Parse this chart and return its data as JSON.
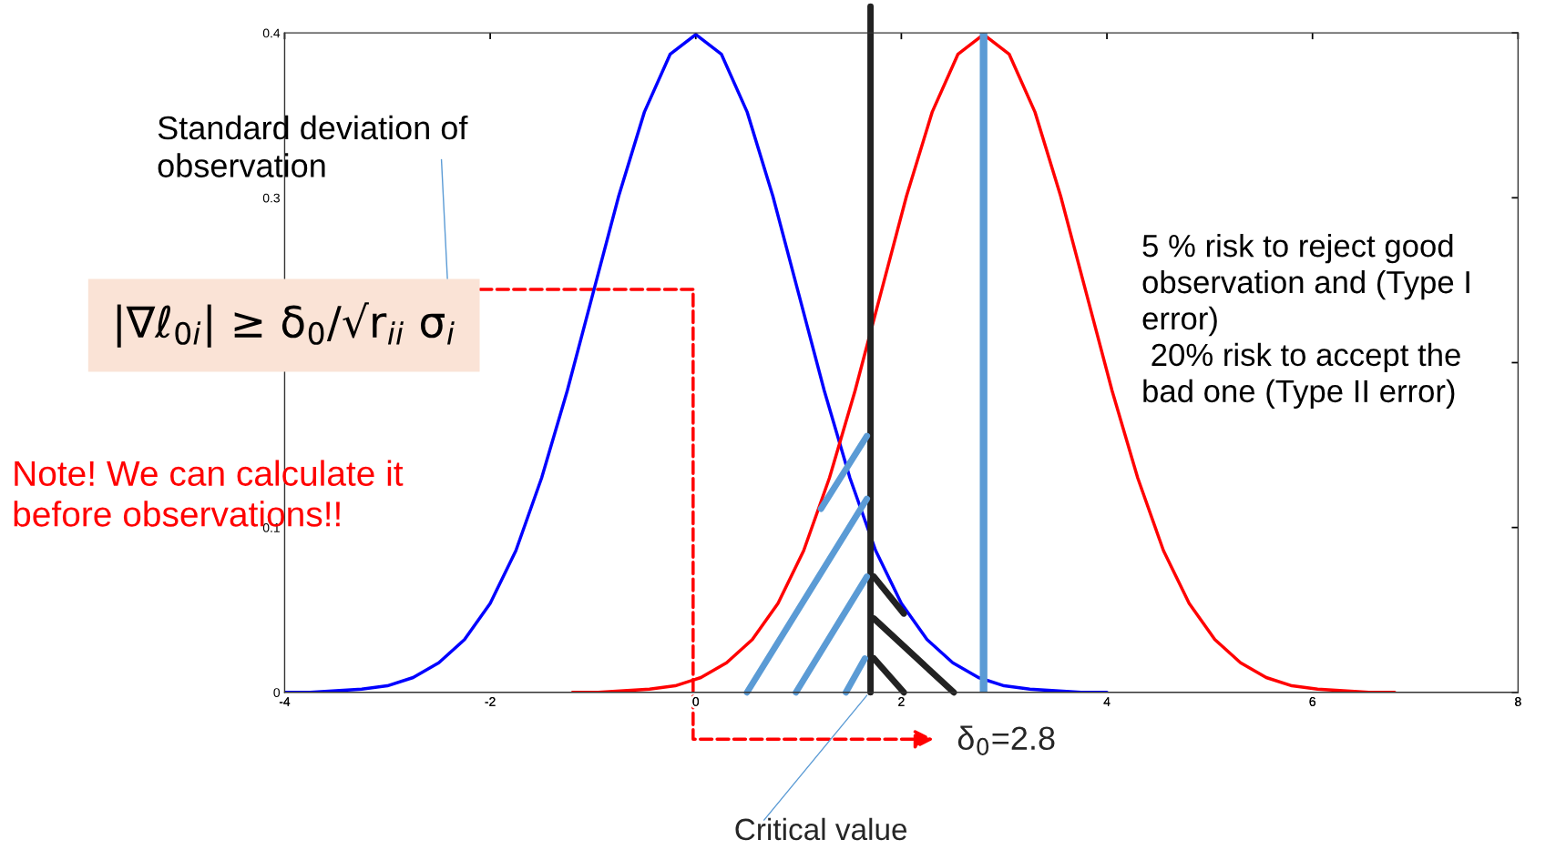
{
  "chart_data": {
    "type": "line",
    "series": [
      {
        "color": "#0000ff",
        "x": [
          -4,
          -3.75,
          -3.5,
          -3.25,
          -3,
          -2.75,
          -2.5,
          -2.25,
          -2,
          -1.75,
          -1.5,
          -1.25,
          -1,
          -0.75,
          -0.5,
          -0.25,
          0,
          0.25,
          0.5,
          0.75,
          1,
          1.25,
          1.5,
          1.75,
          2,
          2.25,
          2.5,
          2.75,
          3,
          3.25,
          3.5,
          3.75,
          4
        ],
        "values": [
          0.0,
          0.0,
          0.001,
          0.002,
          0.004,
          0.009,
          0.018,
          0.032,
          0.054,
          0.086,
          0.13,
          0.183,
          0.242,
          0.301,
          0.352,
          0.387,
          0.399,
          0.387,
          0.352,
          0.301,
          0.242,
          0.183,
          0.13,
          0.086,
          0.054,
          0.032,
          0.018,
          0.009,
          0.004,
          0.002,
          0.001,
          0.0,
          0.0
        ]
      },
      {
        "color": "#ff0000",
        "x": [
          -1.2,
          -0.95,
          -0.7,
          -0.45,
          -0.2,
          0.05,
          0.3,
          0.55,
          0.8,
          1.05,
          1.3,
          1.55,
          1.8,
          2.05,
          2.3,
          2.55,
          2.8,
          3.05,
          3.3,
          3.55,
          3.8,
          4.05,
          4.3,
          4.55,
          4.8,
          5.05,
          5.3,
          5.55,
          5.8,
          6.05,
          6.3,
          6.55,
          6.8
        ],
        "values": [
          0.0,
          0.0,
          0.001,
          0.002,
          0.004,
          0.009,
          0.018,
          0.032,
          0.054,
          0.086,
          0.13,
          0.183,
          0.242,
          0.301,
          0.352,
          0.387,
          0.399,
          0.387,
          0.352,
          0.301,
          0.242,
          0.183,
          0.13,
          0.086,
          0.054,
          0.032,
          0.018,
          0.009,
          0.004,
          0.002,
          0.001,
          0.0,
          0.0
        ]
      }
    ],
    "xlim": [
      -4,
      8
    ],
    "ylim": [
      0,
      0.4
    ],
    "xticks": [
      -4,
      -2,
      0,
      2,
      4,
      6,
      8
    ],
    "yticks": [
      0,
      0.1,
      {
        "value": 0.2,
        "label": null
      },
      0.3,
      0.4
    ],
    "grid": false,
    "legend": false,
    "marker": "none",
    "line_style": "solid",
    "ref_lines": [
      {
        "axis": "x",
        "value": 2.8,
        "label": "δ$_{0}$=2.8",
        "color": "#5b9bd5"
      },
      {
        "axis": "x",
        "value": 1.7,
        "label": "Critical value",
        "color": "#222222"
      }
    ],
    "annotations": [
      "Standard deviation of\nobservation",
      "|∇ℓ$_{0i}$| ≥ δ$_{0}$/√r$_{ii}$ σ$_{i}$",
      "Note! We can calculate it\nbefore observations!!",
      "5 % risk to reject good\nobservation and (Type I\nerror)\n 20% risk to accept the\nbad one (Type II error)"
    ]
  }
}
